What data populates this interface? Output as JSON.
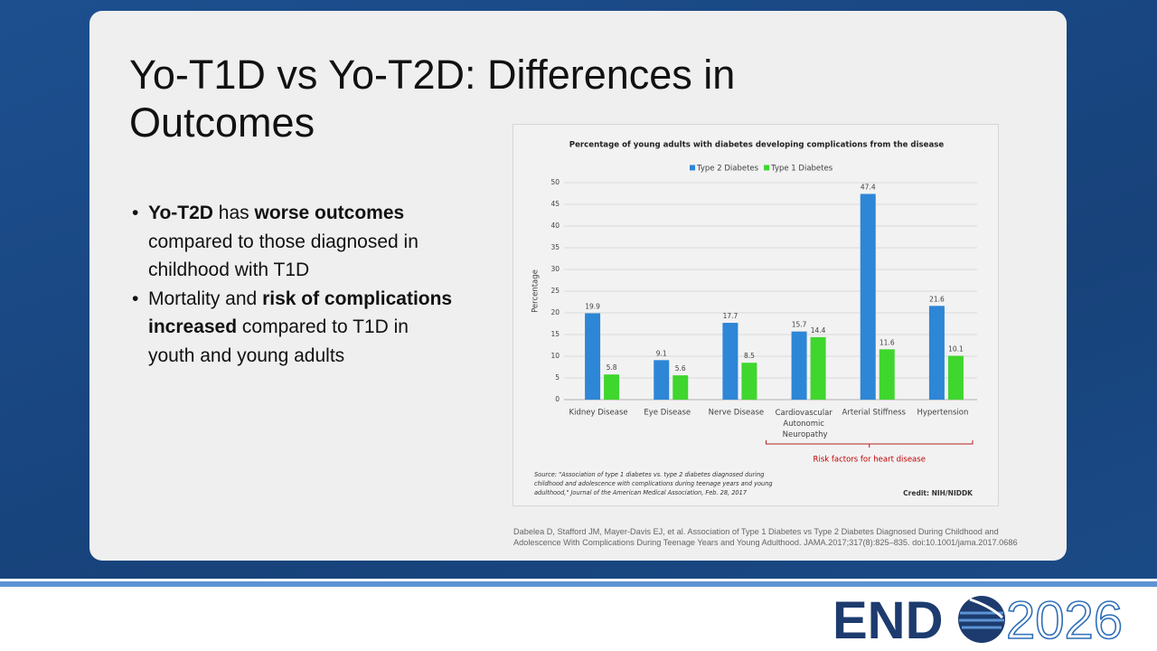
{
  "slide": {
    "title": "Yo-T1D vs Yo-T2D: Differences in Outcomes",
    "bullets": [
      [
        {
          "text": "Yo-T2D",
          "bold": true
        },
        {
          "text": " has "
        },
        {
          "text": "worse outcomes",
          "bold": true
        },
        {
          "text": " compared to those diagnosed in childhood with T1D"
        }
      ],
      [
        {
          "text": "Mortality and "
        },
        {
          "text": "risk of complications increased",
          "bold": true
        },
        {
          "text": " compared to T1D in youth and young adults"
        }
      ]
    ],
    "citation": "Dabelea D, Stafford JM, Mayer-Davis EJ, et al. Association of Type 1 Diabetes vs Type 2 Diabetes Diagnosed During Childhood and Adolescence With Complications During Teenage Years and Young Adulthood. JAMA.2017;317(8):825–835. doi:10.1001/jama.2017.0686",
    "logo": {
      "brand": "END",
      "year": "2026"
    }
  },
  "chart_data": {
    "type": "bar",
    "title": "Percentage of young adults with diabetes developing complications from the disease",
    "y_label": "Percentage",
    "categories": [
      "Kidney Disease",
      "Eye Disease",
      "Nerve Disease",
      "Cardiovascular Autonomic Neuropathy",
      "Arterial Stiffness",
      "Hypertension"
    ],
    "series": [
      {
        "name": "Type 2 Diabetes",
        "color": "#2e86d6",
        "values": [
          19.9,
          9.1,
          17.7,
          15.7,
          47.4,
          21.6
        ]
      },
      {
        "name": "Type 1 Diabetes",
        "color": "#3fd62e",
        "values": [
          5.8,
          5.6,
          8.5,
          14.4,
          11.6,
          10.1
        ]
      }
    ],
    "ylim": [
      0,
      50
    ],
    "yticks": [
      0,
      5,
      10,
      15,
      20,
      25,
      30,
      35,
      40,
      45,
      50
    ],
    "grid": true,
    "annotation": "Risk factors for heart disease",
    "source": "Source: \"Association of type 1 diabetes vs. type 2 diabetes diagnosed during childhood and adolescence with complications during teenage years and young adulthood,\" Journal of the American Medical Association, Feb. 28, 2017",
    "credit": "Credit: NIH/NIDDK"
  }
}
